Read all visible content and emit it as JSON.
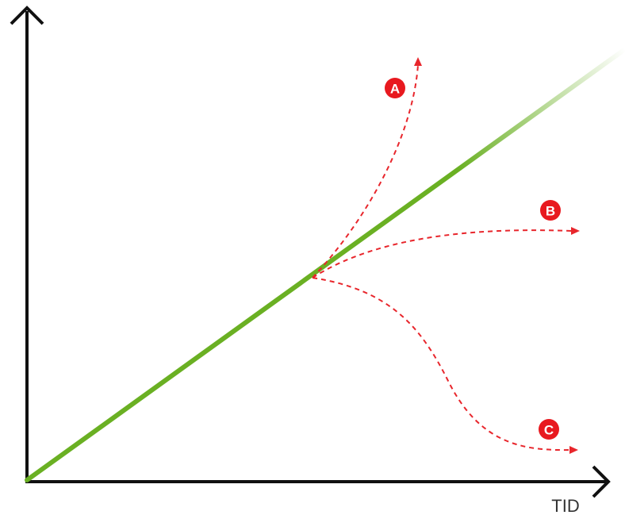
{
  "x_axis": {
    "label": "TID"
  },
  "colors": {
    "axis": "#111111",
    "trend": "#6ab023",
    "trend_fade": "#ffffff",
    "scenario": "#e8262c",
    "badge": "#e8191f",
    "badge_text": "#ffffff"
  },
  "scenarios": [
    {
      "id": "A",
      "label": "A"
    },
    {
      "id": "B",
      "label": "B"
    },
    {
      "id": "C",
      "label": "C"
    }
  ]
}
